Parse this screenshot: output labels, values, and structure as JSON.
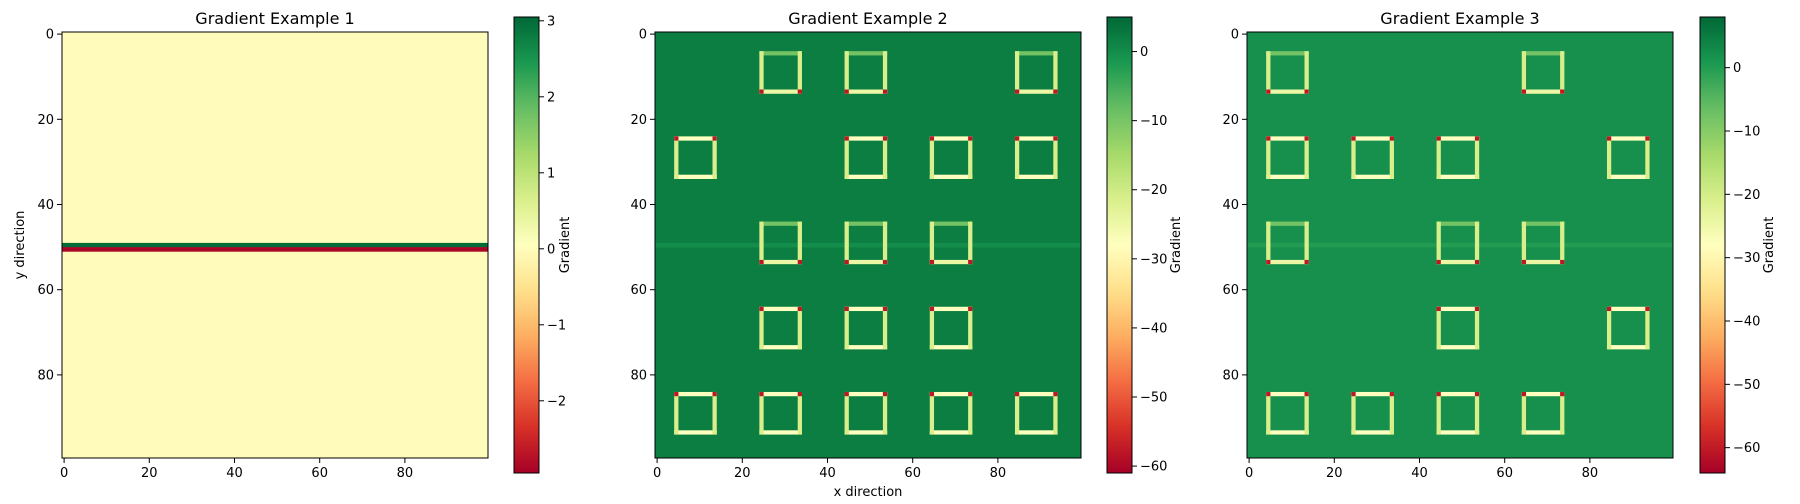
{
  "figure": {
    "colormap": [
      "#a50026",
      "#d73027",
      "#f46d43",
      "#fdae61",
      "#fee08b",
      "#ffffbf",
      "#d9ef8b",
      "#a6d96a",
      "#66bd63",
      "#1a9850",
      "#006837"
    ]
  },
  "chart_data": [
    {
      "type": "heatmap",
      "title": "Gradient Example 1",
      "xlabel": "",
      "ylabel": "y direction",
      "xlim": [
        0,
        100
      ],
      "ylim": [
        100,
        0
      ],
      "xticks": [
        "0",
        "20",
        "40",
        "60",
        "80"
      ],
      "yticks": [
        "0",
        "20",
        "40",
        "60",
        "80"
      ],
      "colorbar": {
        "label": "Gradient",
        "min": -2.95,
        "max": 3.05,
        "ticks": [
          {
            "value": 3,
            "label": "3"
          },
          {
            "value": 2,
            "label": "2"
          },
          {
            "value": 1,
            "label": "1"
          },
          {
            "value": 0,
            "label": "0"
          },
          {
            "value": -1,
            "label": "−1"
          },
          {
            "value": -2,
            "label": "−2"
          }
        ]
      },
      "background_value": 0.0,
      "horizontal_band": [
        {
          "y": 50,
          "value": 3.0
        },
        {
          "y": 51,
          "value": -2.9
        }
      ],
      "squares": []
    },
    {
      "type": "heatmap",
      "title": "Gradient Example 2",
      "xlabel": "x direction",
      "ylabel": "",
      "xlim": [
        0,
        100
      ],
      "ylim": [
        100,
        0
      ],
      "xticks": [
        "0",
        "20",
        "40",
        "60",
        "80"
      ],
      "yticks": [
        "0",
        "20",
        "40",
        "60",
        "80"
      ],
      "colorbar": {
        "label": "Gradient",
        "min": -61,
        "max": 5,
        "ticks": [
          {
            "value": 0,
            "label": "0"
          },
          {
            "value": -10,
            "label": "−10"
          },
          {
            "value": -20,
            "label": "−20"
          },
          {
            "value": -30,
            "label": "−30"
          },
          {
            "value": -40,
            "label": "−40"
          },
          {
            "value": -50,
            "label": "−50"
          },
          {
            "value": -60,
            "label": "−60"
          }
        ]
      },
      "background_value": 2.0,
      "horizontal_band": [
        {
          "y": 50,
          "value": 0.0
        }
      ],
      "squares": [
        {
          "x": 25,
          "y": 5,
          "band": true
        },
        {
          "x": 45,
          "y": 5,
          "band": true
        },
        {
          "x": 85,
          "y": 5,
          "band": true
        },
        {
          "x": 5,
          "y": 25,
          "band": false
        },
        {
          "x": 45,
          "y": 25,
          "band": false
        },
        {
          "x": 65,
          "y": 25,
          "band": false
        },
        {
          "x": 85,
          "y": 25,
          "band": false
        },
        {
          "x": 25,
          "y": 45,
          "band": true
        },
        {
          "x": 45,
          "y": 45,
          "band": true
        },
        {
          "x": 65,
          "y": 45,
          "band": true
        },
        {
          "x": 25,
          "y": 65,
          "band": false
        },
        {
          "x": 45,
          "y": 65,
          "band": false
        },
        {
          "x": 65,
          "y": 65,
          "band": false
        },
        {
          "x": 5,
          "y": 85,
          "band": false
        },
        {
          "x": 25,
          "y": 85,
          "band": false
        },
        {
          "x": 45,
          "y": 85,
          "band": false
        },
        {
          "x": 65,
          "y": 85,
          "band": false
        },
        {
          "x": 85,
          "y": 85,
          "band": false
        }
      ]
    },
    {
      "type": "heatmap",
      "title": "Gradient Example 3",
      "xlabel": "",
      "ylabel": "",
      "xlim": [
        0,
        100
      ],
      "ylim": [
        100,
        0
      ],
      "xticks": [
        "0",
        "20",
        "40",
        "60",
        "80"
      ],
      "yticks": [
        "0",
        "20",
        "40",
        "60",
        "80"
      ],
      "colorbar": {
        "label": "Gradient",
        "min": -64,
        "max": 8,
        "ticks": [
          {
            "value": 0,
            "label": "0"
          },
          {
            "value": -10,
            "label": "−10"
          },
          {
            "value": -20,
            "label": "−20"
          },
          {
            "value": -30,
            "label": "−30"
          },
          {
            "value": -40,
            "label": "−40"
          },
          {
            "value": -50,
            "label": "−50"
          },
          {
            "value": -60,
            "label": "−60"
          }
        ]
      },
      "background_value": 2.0,
      "horizontal_band": [
        {
          "y": 50,
          "value": 0.0
        }
      ],
      "squares": [
        {
          "x": 5,
          "y": 5,
          "band": true
        },
        {
          "x": 65,
          "y": 5,
          "band": true
        },
        {
          "x": 5,
          "y": 25,
          "band": false
        },
        {
          "x": 25,
          "y": 25,
          "band": false
        },
        {
          "x": 45,
          "y": 25,
          "band": false
        },
        {
          "x": 85,
          "y": 25,
          "band": false
        },
        {
          "x": 5,
          "y": 45,
          "band": true
        },
        {
          "x": 45,
          "y": 45,
          "band": true
        },
        {
          "x": 65,
          "y": 45,
          "band": true
        },
        {
          "x": 45,
          "y": 65,
          "band": false
        },
        {
          "x": 85,
          "y": 65,
          "band": false
        },
        {
          "x": 5,
          "y": 85,
          "band": false
        },
        {
          "x": 25,
          "y": 85,
          "band": false
        },
        {
          "x": 45,
          "y": 85,
          "band": false
        },
        {
          "x": 65,
          "y": 85,
          "band": false
        }
      ]
    }
  ]
}
